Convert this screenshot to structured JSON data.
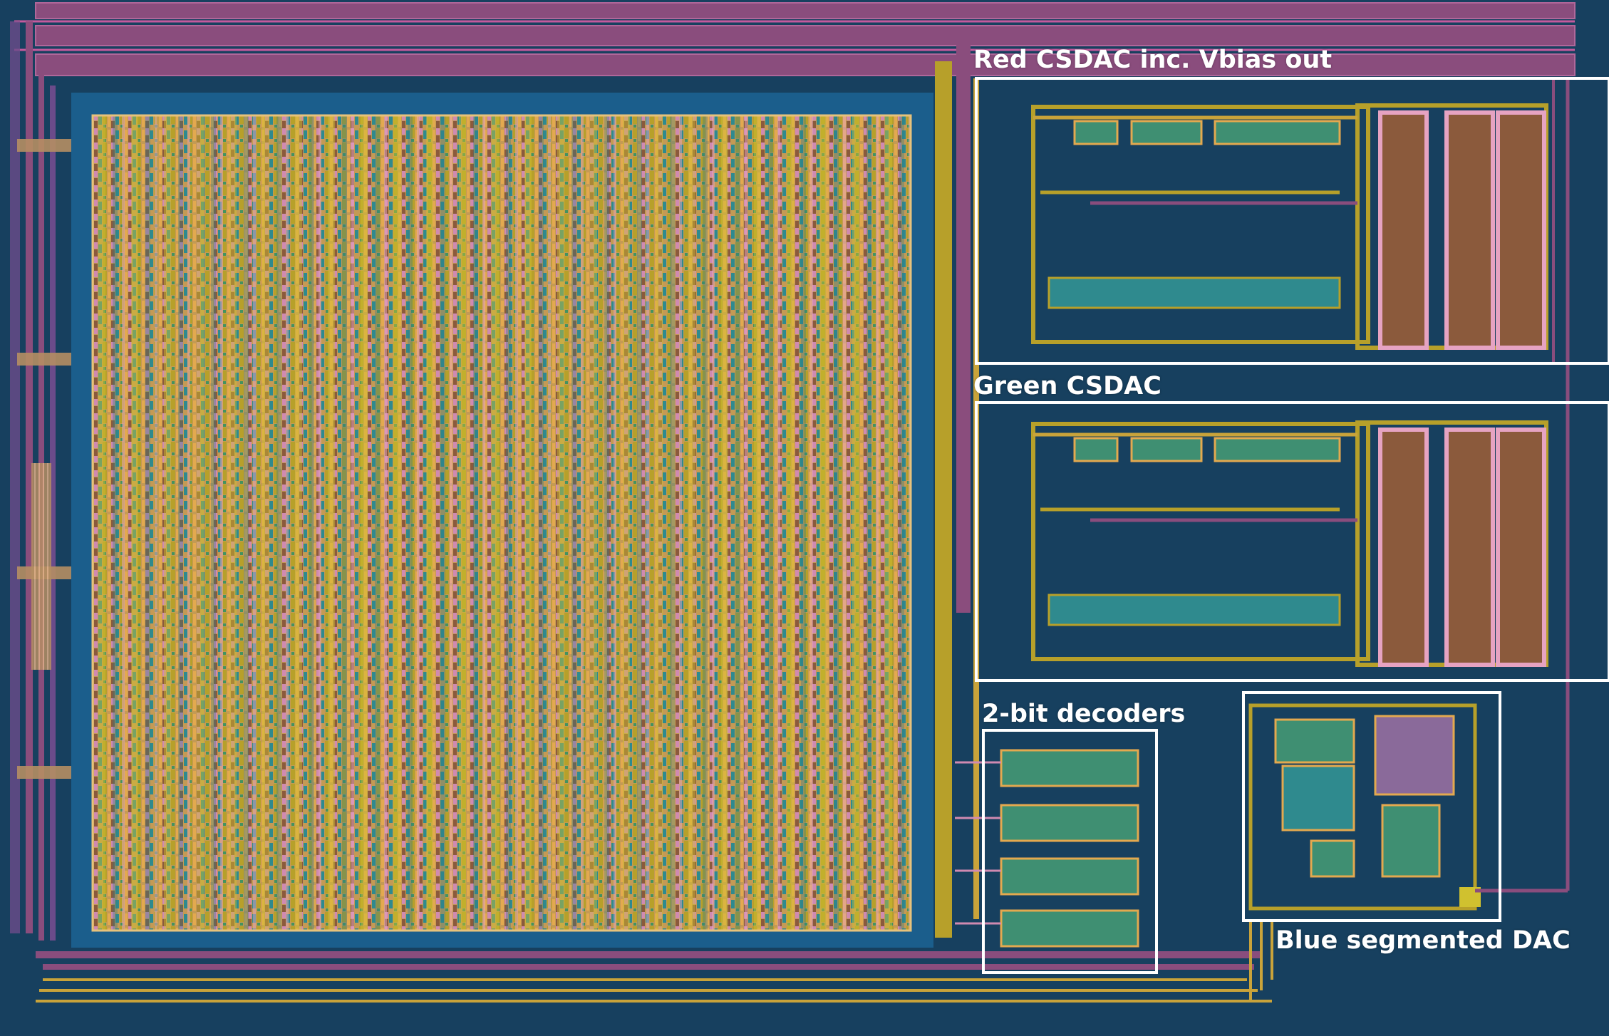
{
  "labels": {
    "red_csdac": "Red CSDAC inc. Vbias out",
    "green_csdac": "Green CSDAC",
    "decoders": "2-bit decoders",
    "blue_dac": "Blue segmented DAC"
  },
  "colors": {
    "background": "#17405f",
    "power_rail": "#8a4d7d",
    "rail_edge": "#b0679a",
    "core_fill": "#b8a050",
    "core_border": "#1b5e8c",
    "metal_orange": "#e3a94f",
    "metal_pink": "#d08ab1",
    "metal_yellow": "#b7b22e",
    "metal_brown": "#8b5a3c",
    "metal_green": "#43935f",
    "metal_teal": "#2f8a8e",
    "highlight": "#ffffff"
  }
}
